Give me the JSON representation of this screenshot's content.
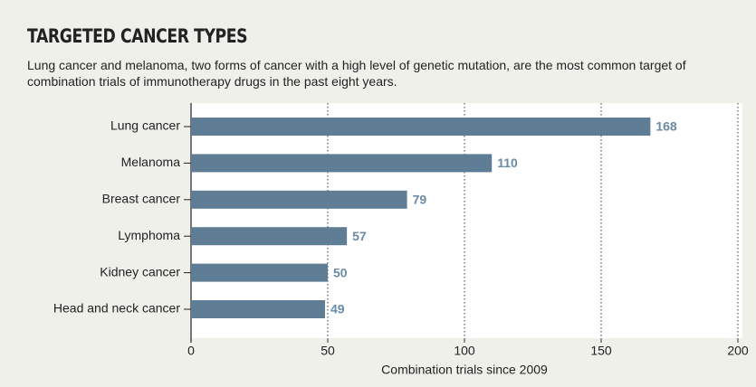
{
  "chart_data": {
    "type": "bar",
    "orientation": "horizontal",
    "title": "TARGETED CANCER TYPES",
    "subtitle": "Lung cancer and melanoma, two forms of cancer with a high level of genetic mutation, are the most common target of combination trials of immunotherapy drugs in the past eight years.",
    "categories": [
      "Lung cancer",
      "Melanoma",
      "Breast cancer",
      "Lymphoma",
      "Kidney cancer",
      "Head and neck cancer"
    ],
    "values": [
      168,
      110,
      79,
      57,
      50,
      49
    ],
    "color": "#5f7d94",
    "label_color": "#6a8aa6",
    "xlabel": "Combination trials since 2009",
    "xlim": [
      0,
      200
    ],
    "xticks": [
      0,
      50,
      100,
      150,
      200
    ],
    "grid": true
  }
}
